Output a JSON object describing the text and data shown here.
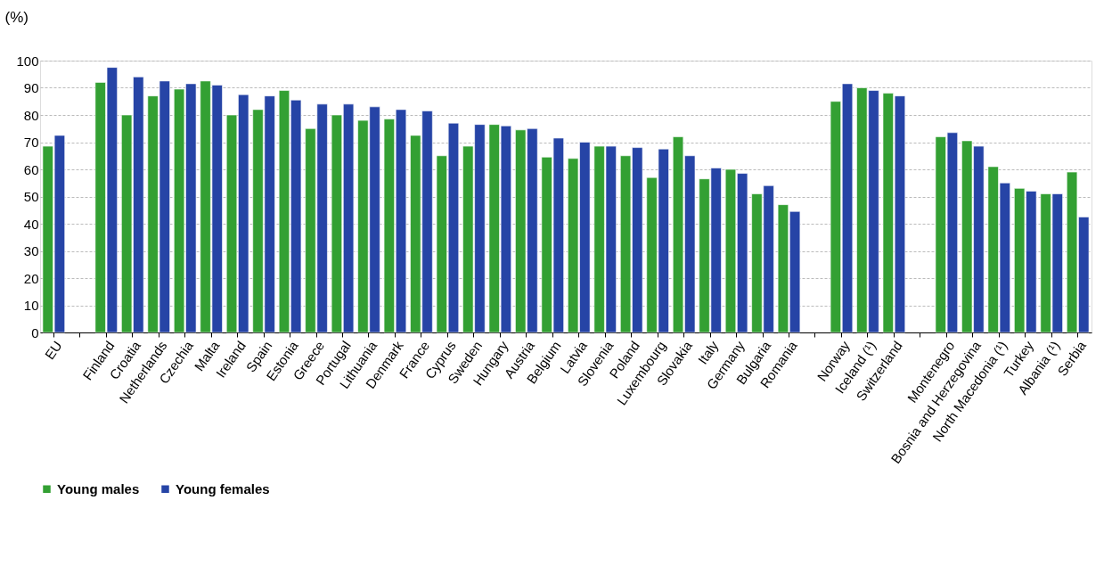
{
  "chart_data": {
    "type": "bar",
    "ylabel": "(%)",
    "categories": [
      "EU",
      null,
      "Finland",
      "Croatia",
      "Netherlands",
      "Czechia",
      "Malta",
      "Ireland",
      "Spain",
      "Estonia",
      "Greece",
      "Portugal",
      "Lithuania",
      "Denmark",
      "France",
      "Cyprus",
      "Sweden",
      "Hungary",
      "Austria",
      "Belgium",
      "Latvia",
      "Slovenia",
      "Poland",
      "Luxembourg",
      "Slovakia",
      "Italy",
      "Germany",
      "Bulgaria",
      "Romania",
      null,
      "Norway",
      "Iceland (¹)",
      "Switzerland",
      null,
      "Montenegro",
      "Bosnia and Herzegovina",
      "North Macedonia (¹)",
      "Turkey",
      "Albania (¹)",
      "Serbia"
    ],
    "series": [
      {
        "name": "Young males",
        "color": "#33a033",
        "values": [
          68.5,
          null,
          92,
          80,
          87,
          89.5,
          92.5,
          80,
          82,
          89,
          75,
          80,
          78,
          78.5,
          72.5,
          65,
          68.5,
          76.5,
          74.5,
          64.5,
          64,
          68.5,
          65,
          57,
          72,
          56.5,
          60,
          51,
          47,
          null,
          85,
          90,
          88,
          null,
          72,
          70.5,
          61,
          53,
          51,
          59
        ]
      },
      {
        "name": "Young females",
        "color": "#2644a6",
        "values": [
          72.5,
          null,
          97.5,
          94,
          92.5,
          91.5,
          91,
          87.5,
          87,
          85.5,
          84,
          84,
          83,
          82,
          81.5,
          77,
          76.5,
          76,
          75,
          71.5,
          70,
          68.5,
          68,
          67.5,
          65,
          60.5,
          58.5,
          54,
          44.5,
          null,
          91.5,
          89,
          87,
          null,
          73.5,
          68.5,
          55,
          52,
          51,
          42.5
        ]
      }
    ],
    "ylim": [
      0,
      100
    ],
    "yticks": [
      0,
      10,
      20,
      30,
      40,
      50,
      60,
      70,
      80,
      90,
      100
    ],
    "grid": "y",
    "legend": "bottom"
  }
}
